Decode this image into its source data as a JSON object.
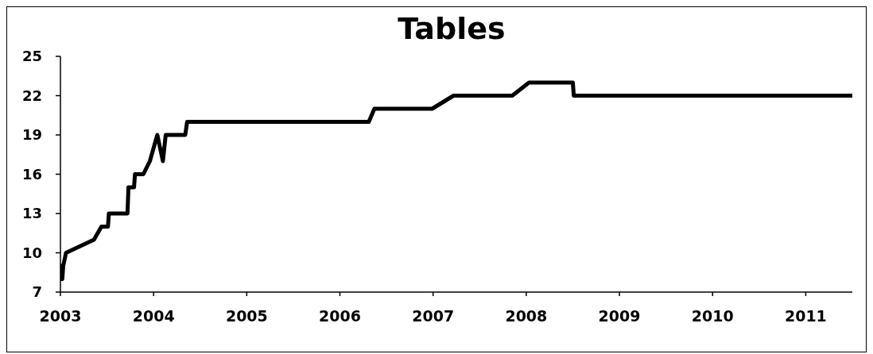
{
  "chart_data": {
    "type": "line",
    "title": "Tables",
    "x": [
      2003.0,
      2003.01,
      2003.02,
      2003.03,
      2003.06,
      2003.36,
      2003.44,
      2003.51,
      2003.52,
      2003.72,
      2003.73,
      2003.79,
      2003.8,
      2003.89,
      2003.96,
      2004.04,
      2004.1,
      2004.13,
      2004.34,
      2004.36,
      2006.31,
      2006.37,
      2006.99,
      2007.22,
      2007.85,
      2008.03,
      2008.5,
      2008.51,
      2011.5
    ],
    "series": [
      {
        "color": "#000000",
        "values": [
          9,
          8,
          8,
          9,
          10,
          11,
          12,
          12,
          13,
          13,
          15,
          15,
          16,
          16,
          17,
          19,
          17,
          19,
          19,
          20,
          20,
          21,
          21,
          22,
          22,
          23,
          23,
          22,
          22
        ]
      }
    ],
    "xlim": [
      2003,
      2011.5
    ],
    "xticks": [
      2003,
      2004,
      2005,
      2006,
      2007,
      2008,
      2009,
      2010,
      2011
    ],
    "ylim": [
      7,
      25
    ],
    "yticks": [
      7,
      10,
      13,
      16,
      19,
      22,
      25
    ],
    "marker": "none",
    "line_style": "solid"
  }
}
